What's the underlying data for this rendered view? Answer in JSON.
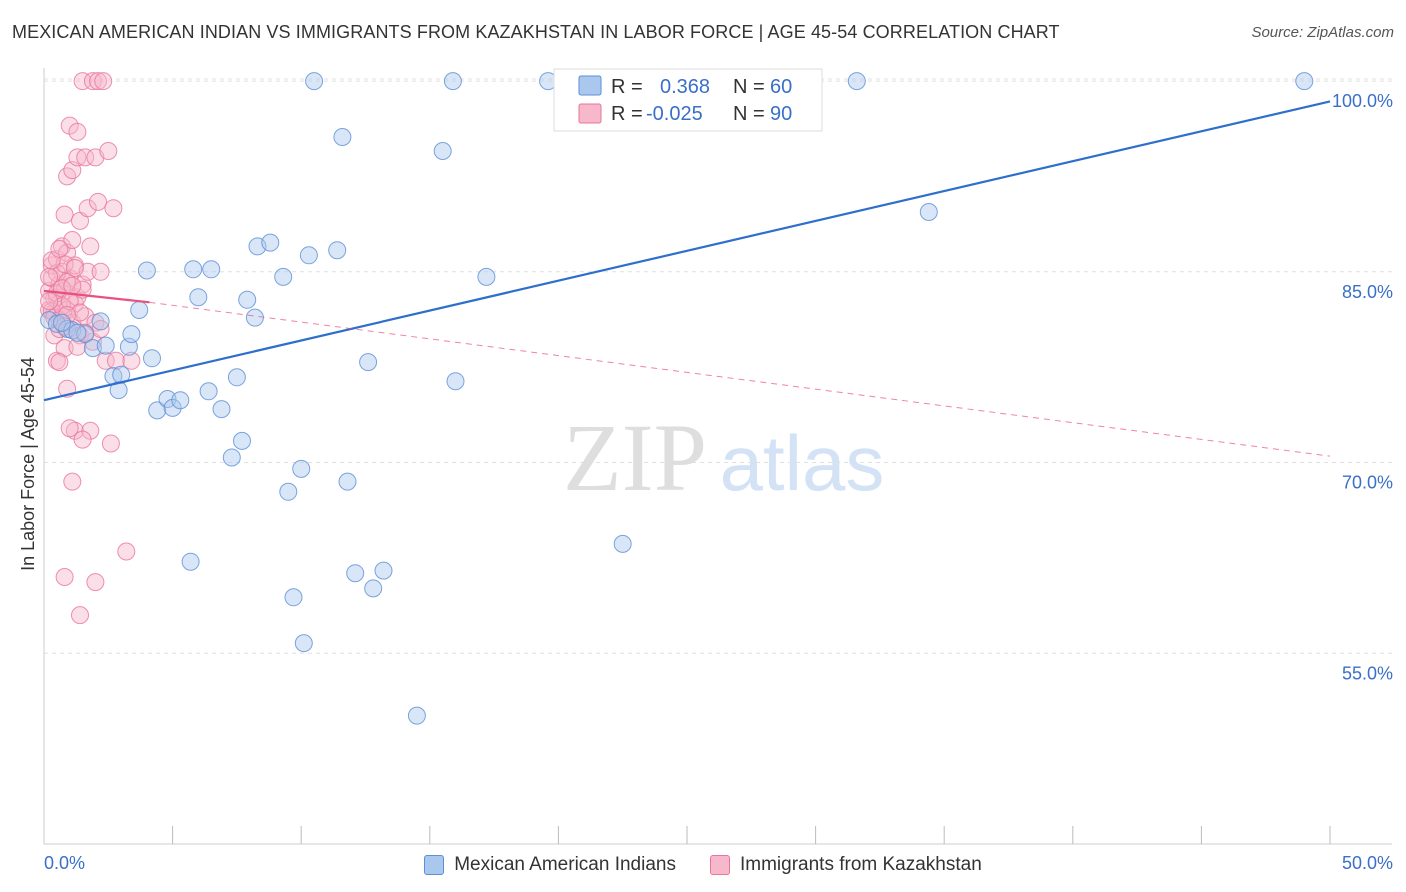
{
  "header": {
    "title": "MEXICAN AMERICAN INDIAN VS IMMIGRANTS FROM KAZAKHSTAN IN LABOR FORCE | AGE 45-54 CORRELATION CHART",
    "source": "Source: ZipAtlas.com"
  },
  "watermark": {
    "zip": "ZIP",
    "atlas": "atlas"
  },
  "stats": {
    "r_label": "R =",
    "n_label": "N =",
    "blue": {
      "r": "0.368",
      "n": "60"
    },
    "pink": {
      "r": "-0.025",
      "n": "90"
    }
  },
  "colors": {
    "blue_fill": "#aac8ee",
    "blue_stroke": "#5b8fd6",
    "blue_line": "#2e6fcc",
    "blue_text": "#3a6fc8",
    "pink_fill": "#f7b8cb",
    "pink_stroke": "#e8759a",
    "pink_line": "#e8507f",
    "grid": "#e0e0e0",
    "axis_text": "#3a6fc8"
  },
  "chart_data": {
    "type": "scatter",
    "title": "MEXICAN AMERICAN INDIAN VS IMMIGRANTS FROM KAZAKHSTAN IN LABOR FORCE | AGE 45-54 CORRELATION CHART",
    "xlabel": "",
    "ylabel": "In Labor Force | Age 45-54",
    "xlim": [
      0,
      50
    ],
    "ylim": [
      40,
      101.5
    ],
    "x_tick_labels": [
      {
        "value": 0,
        "label": "0.0%"
      },
      {
        "value": 50,
        "label": "50.0%"
      }
    ],
    "y_tick_labels": [
      {
        "value": 100,
        "label": "100.0%"
      },
      {
        "value": 85,
        "label": "85.0%"
      },
      {
        "value": 70,
        "label": "70.0%"
      },
      {
        "value": 55,
        "label": "55.0%"
      }
    ],
    "x_minor_ticks": [
      5,
      10,
      15,
      20,
      25,
      30,
      35,
      40,
      45,
      50
    ],
    "series": [
      {
        "name": "Mexican American Indians",
        "color": "#aac8ee",
        "trend": {
          "x": [
            0,
            50
          ],
          "y": [
            74.9,
            98.4
          ],
          "style": "solid"
        },
        "points": [
          [
            0.2,
            81.2
          ],
          [
            0.5,
            80.9
          ],
          [
            0.9,
            80.5
          ],
          [
            1.1,
            80.4
          ],
          [
            1.6,
            80.1
          ],
          [
            1.9,
            79.0
          ],
          [
            2.2,
            81.1
          ],
          [
            2.4,
            79.2
          ],
          [
            2.7,
            76.8
          ],
          [
            2.9,
            75.7
          ],
          [
            3.3,
            79.1
          ],
          [
            3.4,
            80.1
          ],
          [
            3.7,
            82.0
          ],
          [
            4.0,
            85.1
          ],
          [
            4.2,
            78.2
          ],
          [
            4.4,
            74.1
          ],
          [
            4.8,
            75.0
          ],
          [
            5.0,
            74.3
          ],
          [
            5.3,
            74.9
          ],
          [
            5.7,
            62.2
          ],
          [
            5.8,
            85.2
          ],
          [
            6.0,
            83.0
          ],
          [
            6.4,
            75.6
          ],
          [
            6.5,
            85.2
          ],
          [
            6.9,
            74.2
          ],
          [
            7.3,
            70.4
          ],
          [
            7.5,
            76.7
          ],
          [
            7.7,
            71.7
          ],
          [
            7.9,
            82.8
          ],
          [
            8.2,
            81.4
          ],
          [
            8.3,
            87.0
          ],
          [
            8.8,
            87.3
          ],
          [
            9.3,
            84.6
          ],
          [
            9.5,
            67.7
          ],
          [
            9.7,
            59.4
          ],
          [
            10.0,
            69.5
          ],
          [
            10.1,
            55.8
          ],
          [
            10.3,
            86.3
          ],
          [
            10.5,
            100.0
          ],
          [
            11.4,
            86.7
          ],
          [
            11.6,
            95.6
          ],
          [
            11.8,
            68.5
          ],
          [
            12.1,
            61.3
          ],
          [
            12.6,
            77.9
          ],
          [
            12.8,
            60.1
          ],
          [
            13.2,
            61.5
          ],
          [
            14.5,
            50.1
          ],
          [
            15.9,
            100.0
          ],
          [
            15.5,
            94.5
          ],
          [
            16.0,
            76.4
          ],
          [
            17.2,
            84.6
          ],
          [
            19.6,
            100.0
          ],
          [
            22.5,
            63.6
          ],
          [
            26.2,
            100.0
          ],
          [
            31.6,
            100.0
          ],
          [
            34.4,
            89.7
          ],
          [
            49.0,
            100.0
          ],
          [
            1.3,
            80.2
          ],
          [
            0.7,
            81.0
          ],
          [
            3.0,
            76.9
          ]
        ]
      },
      {
        "name": "Immigrants from Kazakhstan",
        "color": "#f7b8cb",
        "trend": {
          "x": [
            0,
            4.1
          ],
          "y": [
            83.5,
            82.6
          ],
          "style": "solid",
          "dashed_extension": {
            "x": [
              4.1,
              50
            ],
            "y": [
              82.6,
              70.5
            ]
          }
        },
        "points": [
          [
            0.2,
            83.5
          ],
          [
            0.2,
            82.0
          ],
          [
            0.3,
            84.5
          ],
          [
            0.3,
            85.5
          ],
          [
            0.4,
            81.8
          ],
          [
            0.4,
            80.0
          ],
          [
            0.5,
            83.0
          ],
          [
            0.5,
            86.0
          ],
          [
            0.5,
            78.0
          ],
          [
            0.6,
            82.5
          ],
          [
            0.6,
            84.0
          ],
          [
            0.6,
            80.5
          ],
          [
            0.7,
            87.0
          ],
          [
            0.7,
            85.0
          ],
          [
            0.7,
            81.5
          ],
          [
            0.8,
            89.5
          ],
          [
            0.8,
            83.5
          ],
          [
            0.8,
            79.0
          ],
          [
            0.9,
            92.5
          ],
          [
            0.9,
            86.5
          ],
          [
            0.9,
            82.0
          ],
          [
            1.0,
            96.5
          ],
          [
            1.0,
            84.5
          ],
          [
            1.0,
            80.5
          ],
          [
            1.1,
            93.0
          ],
          [
            1.1,
            87.5
          ],
          [
            1.1,
            81.0
          ],
          [
            1.2,
            85.5
          ],
          [
            1.2,
            82.5
          ],
          [
            1.2,
            72.5
          ],
          [
            1.3,
            96.0
          ],
          [
            1.3,
            94.0
          ],
          [
            1.3,
            83.0
          ],
          [
            1.4,
            89.0
          ],
          [
            1.4,
            80.0
          ],
          [
            1.5,
            100.0
          ],
          [
            1.5,
            84.0
          ],
          [
            1.6,
            94.0
          ],
          [
            1.6,
            81.5
          ],
          [
            1.7,
            90.0
          ],
          [
            1.7,
            85.0
          ],
          [
            1.8,
            87.0
          ],
          [
            1.8,
            72.5
          ],
          [
            1.9,
            100.0
          ],
          [
            1.9,
            79.5
          ],
          [
            2.0,
            94.0
          ],
          [
            2.0,
            81.0
          ],
          [
            2.1,
            100.0
          ],
          [
            2.1,
            90.5
          ],
          [
            2.2,
            85.0
          ],
          [
            2.2,
            80.5
          ],
          [
            2.3,
            100.0
          ],
          [
            2.4,
            78.0
          ],
          [
            2.5,
            94.5
          ],
          [
            2.6,
            71.5
          ],
          [
            2.7,
            90.0
          ],
          [
            2.8,
            78.0
          ],
          [
            3.2,
            63.0
          ],
          [
            3.4,
            78.0
          ],
          [
            1.1,
            68.5
          ],
          [
            0.8,
            61.0
          ],
          [
            1.4,
            58.0
          ],
          [
            2.0,
            60.6
          ],
          [
            0.6,
            77.9
          ],
          [
            0.9,
            75.8
          ],
          [
            1.0,
            72.7
          ],
          [
            1.5,
            71.8
          ],
          [
            1.5,
            83.6
          ],
          [
            1.3,
            79.1
          ],
          [
            0.4,
            82.9
          ],
          [
            0.5,
            83.3
          ],
          [
            0.3,
            81.9
          ],
          [
            0.4,
            81.4
          ],
          [
            0.6,
            81.2
          ],
          [
            0.7,
            82.3
          ],
          [
            0.5,
            84.9
          ],
          [
            0.8,
            85.6
          ],
          [
            0.9,
            84.2
          ],
          [
            1.2,
            85.3
          ],
          [
            0.2,
            84.6
          ],
          [
            0.3,
            85.9
          ],
          [
            0.6,
            86.8
          ],
          [
            0.7,
            83.7
          ],
          [
            1.0,
            82.7
          ],
          [
            1.1,
            83.9
          ],
          [
            1.4,
            81.8
          ],
          [
            0.9,
            81.6
          ],
          [
            0.2,
            82.7
          ],
          [
            1.6,
            80.2
          ],
          [
            0.8,
            80.7
          ]
        ]
      }
    ],
    "legend": [
      "Mexican American Indians",
      "Immigrants from Kazakhstan"
    ],
    "grid": true
  }
}
